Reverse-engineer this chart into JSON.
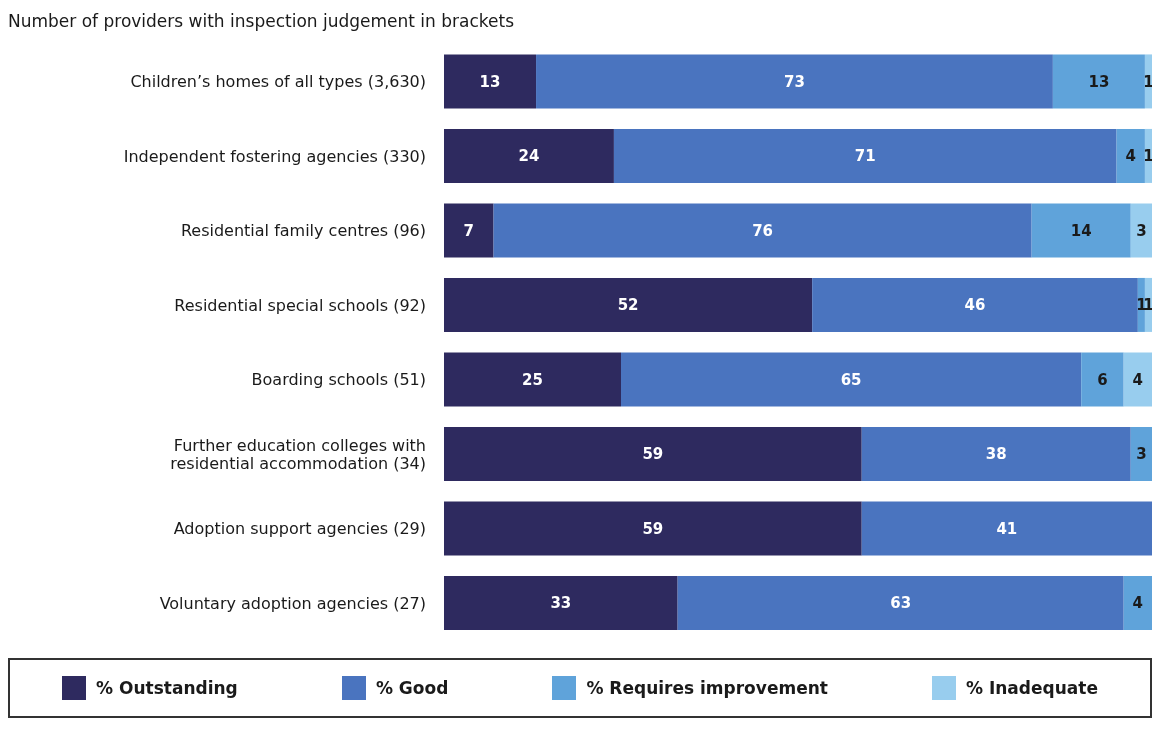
{
  "chart_data": {
    "type": "bar",
    "orientation": "horizontal",
    "stacked": true,
    "title": "Number of providers with inspection judgement in brackets",
    "categories": [
      "Children’s homes of all types (3,630)",
      "Independent fostering agencies (330)",
      "Residential family centres (96)",
      "Residential special schools (92)",
      "Boarding schools (51)",
      "Further education colleges with residential accommodation (34)",
      "Adoption support agencies (29)",
      "Voluntary adoption agencies (27)"
    ],
    "series": [
      {
        "name": "% Outstanding",
        "color": "#2e2a5f",
        "values": [
          13,
          24,
          7,
          52,
          25,
          59,
          59,
          33
        ]
      },
      {
        "name": "% Good",
        "color": "#4a74bf",
        "values": [
          73,
          71,
          76,
          46,
          65,
          38,
          41,
          63
        ]
      },
      {
        "name": "% Requires improvement",
        "color": "#5fa3da",
        "values": [
          13,
          4,
          14,
          1,
          6,
          3,
          null,
          4
        ]
      },
      {
        "name": "% Inadequate",
        "color": "#98cdee",
        "values": [
          1,
          1,
          3,
          1,
          4,
          null,
          null,
          null
        ]
      }
    ],
    "xlim": [
      0,
      100
    ],
    "tick_labels": "y",
    "data_labels": true,
    "legend": "bottom",
    "grid": false
  }
}
